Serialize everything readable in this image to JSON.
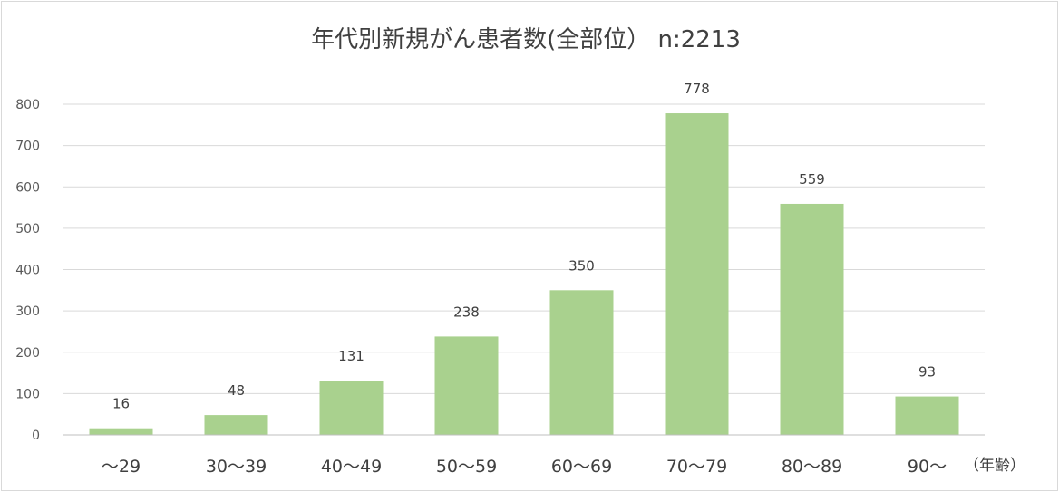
{
  "chart_data": {
    "type": "bar",
    "title": "年代別新規がん患者数(全部位） n:2213",
    "xlabel": "（年齢）",
    "ylabel": "",
    "categories": [
      "～29",
      "30～39",
      "40～49",
      "50～59",
      "60～69",
      "70～79",
      "80～89",
      "90～"
    ],
    "values": [
      16,
      48,
      131,
      238,
      350,
      778,
      559,
      93
    ],
    "ylim": [
      0,
      800
    ],
    "yticks": [
      0,
      100,
      200,
      300,
      400,
      500,
      600,
      700,
      800
    ],
    "grid": true,
    "legend": "none",
    "bar_color": "#a9d18e"
  }
}
